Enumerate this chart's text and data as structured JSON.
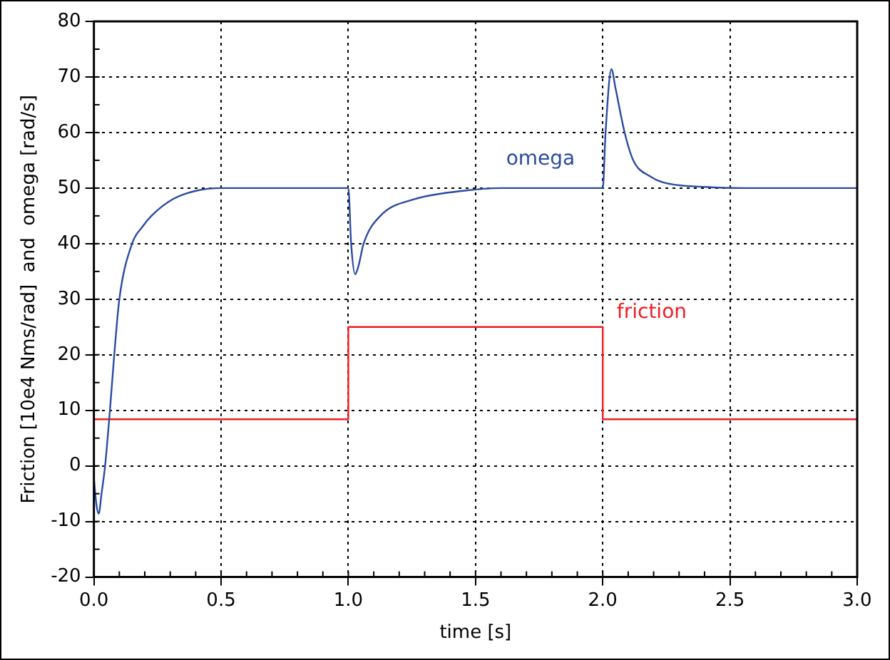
{
  "chart_data": {
    "type": "line",
    "xlabel": "time [s]",
    "ylabel": "Friction [10e4 Nms/rad]  and  omega [rad/s]",
    "xlim": [
      0,
      3
    ],
    "xticks": [
      {
        "value": 0,
        "label": "0.0"
      },
      {
        "value": 0.5,
        "label": "0.5"
      },
      {
        "value": 1,
        "label": "1.0"
      },
      {
        "value": 1.5,
        "label": "1.5"
      },
      {
        "value": 2,
        "label": "2.0"
      },
      {
        "value": 2.5,
        "label": "2.5"
      },
      {
        "value": 3,
        "label": "3.0"
      }
    ],
    "ylim": [
      -20,
      80
    ],
    "yticks": [
      -20,
      -10,
      0,
      10,
      20,
      30,
      40,
      50,
      60,
      70,
      80
    ],
    "grid": true,
    "legend": false,
    "marker": "none",
    "series": [
      {
        "name": "omega",
        "type": "line",
        "color": "#2a4ba0",
        "x": [
          0,
          0.01,
          0.019,
          0.03,
          0.044,
          0.063,
          0.08,
          0.1,
          0.15,
          0.19,
          0.226,
          0.31,
          0.4,
          0.5,
          1,
          1.011,
          1.027,
          1.04,
          1.06,
          1.126,
          1.26,
          1.45,
          1.6,
          2,
          2.011,
          2.034,
          2.05,
          2.086,
          2.12,
          2.19,
          2.24,
          2.4,
          2.6,
          3
        ],
        "values": [
          -2.3,
          -7,
          -8.6,
          -5,
          0,
          10,
          20,
          30,
          40,
          43,
          45,
          48,
          49.5,
          50,
          50,
          40,
          34.5,
          36,
          40,
          45,
          48,
          49.5,
          50,
          50,
          60,
          71.4,
          68,
          60,
          55,
          52,
          51,
          50.2,
          50,
          50
        ]
      },
      {
        "name": "friction",
        "type": "step",
        "color": "#ee1c24",
        "x": [
          0,
          1,
          2,
          3
        ],
        "values": [
          8.4,
          25,
          8.4,
          8.4
        ]
      }
    ]
  }
}
